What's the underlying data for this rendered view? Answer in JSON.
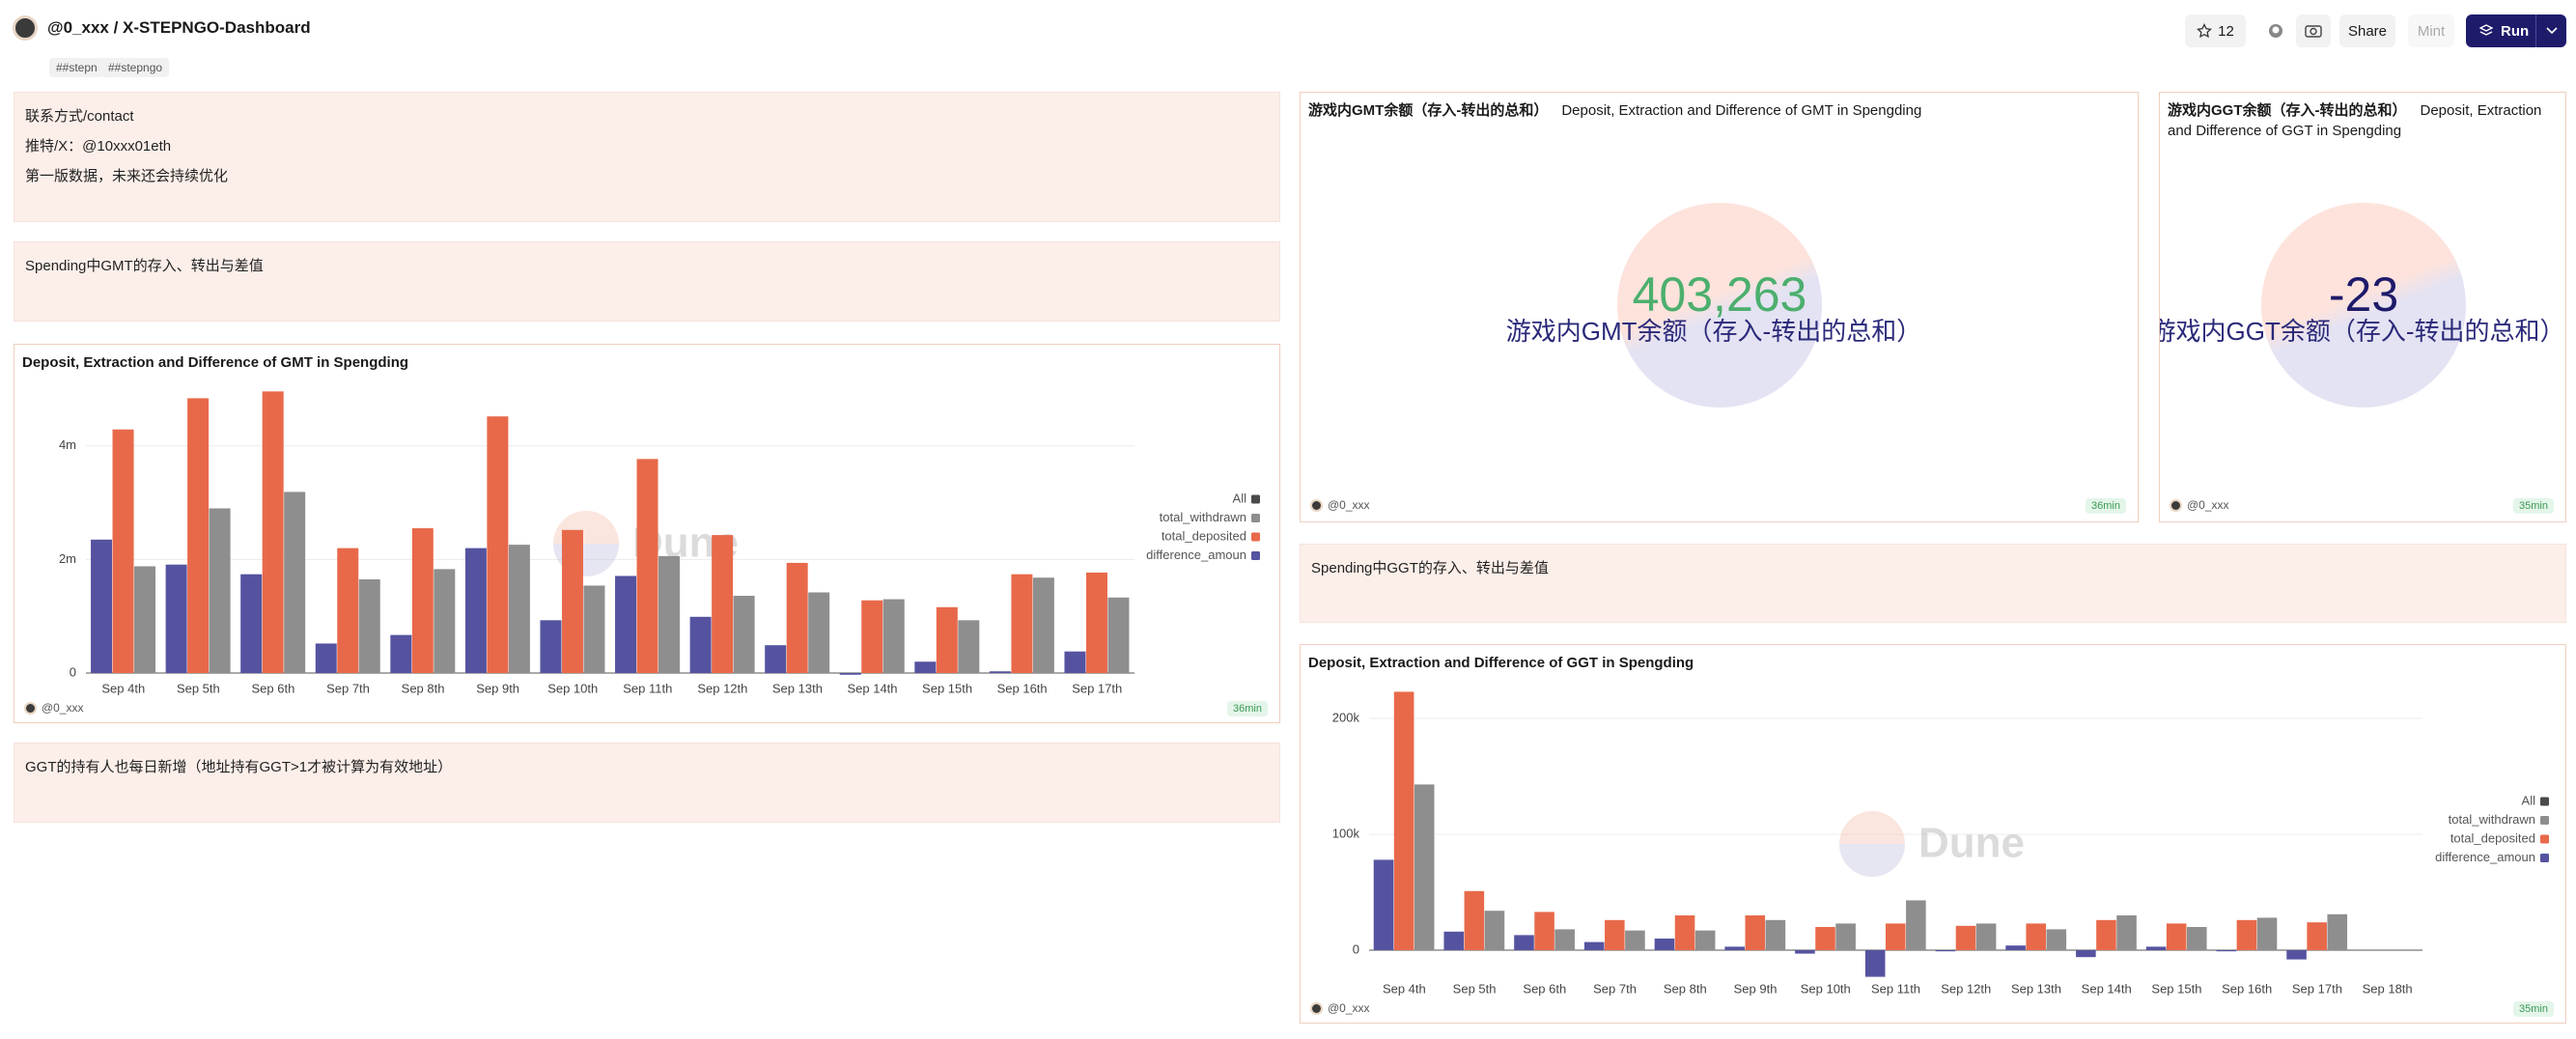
{
  "header": {
    "title": "@0_xxx / X-STEPNGO-Dashboard",
    "tags": [
      "##stepn",
      "##stepngo"
    ],
    "stars": 12,
    "buttons": [
      "Share",
      "Mint",
      "Run"
    ]
  },
  "text_panels": [
    {
      "lines": [
        "联系方式/contact",
        "推特/X：@10xxx01eth",
        "第一版数据，未来还会持续优化"
      ]
    },
    {
      "lines": [
        "Spending中GMT的存入、转出与差值"
      ]
    },
    {
      "lines": [
        "GGT的持有人也每日新增（地址持有GGT>1才被计算为有效地址）"
      ]
    },
    {
      "lines": [
        "Spending中GGT的存入、转出与差值"
      ]
    }
  ],
  "counters": [
    {
      "title": "游戏内GMT余额（存入-转出的总和）",
      "subtitle": "Deposit, Extraction and Difference of GMT in Spengding",
      "value": 403263,
      "value_label": "403,263",
      "label": "游戏内GMT余额（存入-转出的总和）",
      "color": "#4caf6e",
      "author": "@0_xxx",
      "age": "36min"
    },
    {
      "title": "游戏内GGT余额（存入-转出的总和）",
      "subtitle": "Deposit, Extraction and Difference of GGT in Spengding",
      "value": -23,
      "label": "游戏内GGT余额（存入-转出的总和）",
      "color": "#1e1b6b",
      "author": "@0_xxx",
      "age": "35min"
    }
  ],
  "watermark": "Dune",
  "chart_data": [
    {
      "type": "bar",
      "title": "Deposit, Extraction and Difference of GMT in Spengding",
      "categories": [
        "Sep 4th",
        "Sep 5th",
        "Sep 6th",
        "Sep 7th",
        "Sep 8th",
        "Sep 9th",
        "Sep 10th",
        "Sep 11th",
        "Sep 12th",
        "Sep 13th",
        "Sep 14th",
        "Sep 15th",
        "Sep 16th",
        "Sep 17th"
      ],
      "series": [
        {
          "name": "All",
          "color": "#4a4a4a",
          "values": [
            null,
            null,
            null,
            null,
            null,
            null,
            null,
            null,
            null,
            null,
            null,
            null,
            null,
            null
          ]
        },
        {
          "name": "total_withdrawn",
          "color": "#8e8e8e",
          "values": [
            1880000,
            2900000,
            3190000,
            1650000,
            1830000,
            2260000,
            1540000,
            2060000,
            1360000,
            1420000,
            1300000,
            930000,
            1680000,
            1330000
          ]
        },
        {
          "name": "total_deposited",
          "color": "#e8694a",
          "values": [
            4290000,
            4840000,
            4960000,
            2200000,
            2550000,
            4520000,
            2520000,
            3770000,
            2430000,
            1940000,
            1280000,
            1160000,
            1740000,
            1770000
          ]
        },
        {
          "name": "difference_amoun",
          "color": "#5553a0",
          "values": [
            2350000,
            1910000,
            1740000,
            520000,
            670000,
            2200000,
            930000,
            1710000,
            990000,
            490000,
            -30000,
            200000,
            30000,
            380000
          ]
        }
      ],
      "ylim": [
        0,
        5000000
      ],
      "yticks": [
        0,
        {
          "value": 2000000,
          "label": "2m"
        },
        {
          "value": 4000000,
          "label": "4m"
        }
      ],
      "grid": true,
      "legend": "right",
      "author": "@0_xxx",
      "age": "36min"
    },
    {
      "type": "bar",
      "title": "Deposit, Extraction and Difference of GGT in Spengding",
      "categories": [
        "Sep 4th",
        "Sep 5th",
        "Sep 6th",
        "Sep 7th",
        "Sep 8th",
        "Sep 9th",
        "Sep 10th",
        "Sep 11th",
        "Sep 12th",
        "Sep 13th",
        "Sep 14th",
        "Sep 15th",
        "Sep 16th",
        "Sep 17th",
        "Sep 18th"
      ],
      "series": [
        {
          "name": "All",
          "color": "#4a4a4a",
          "values": [
            null,
            null,
            null,
            null,
            null,
            null,
            null,
            null,
            null,
            null,
            null,
            null,
            null,
            null,
            null
          ]
        },
        {
          "name": "total_withdrawn",
          "color": "#8e8e8e",
          "values": [
            143000,
            34000,
            18000,
            17000,
            17000,
            26000,
            23000,
            43000,
            23000,
            18000,
            30000,
            20000,
            28000,
            31000,
            0
          ]
        },
        {
          "name": "total_deposited",
          "color": "#e8694a",
          "values": [
            223000,
            51000,
            33000,
            26000,
            30000,
            30000,
            20000,
            23000,
            21000,
            23000,
            26000,
            23000,
            26000,
            24000,
            0
          ]
        },
        {
          "name": "difference_amoun",
          "color": "#5553a0",
          "values": [
            78000,
            16000,
            13000,
            7000,
            10000,
            3000,
            -3000,
            -23000,
            -1000,
            4000,
            -6000,
            3000,
            -1000,
            -8000,
            0
          ]
        }
      ],
      "ylim": [
        -25000,
        225000
      ],
      "yticks": [
        0,
        {
          "value": 100000,
          "label": "100k"
        },
        {
          "value": 200000,
          "label": "200k"
        }
      ],
      "grid": true,
      "legend": "right",
      "author": "@0_xxx",
      "age": "35min"
    }
  ]
}
